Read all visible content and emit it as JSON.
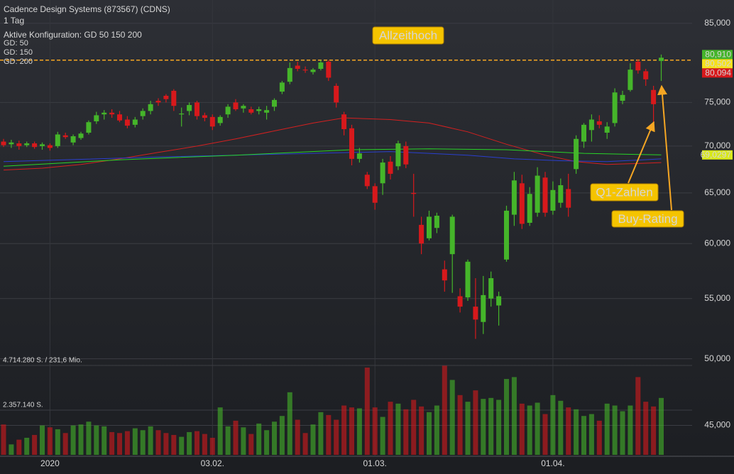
{
  "chart_data": {
    "type": "candlestick",
    "title": "Cadence Design Systems (873567) (CDNS)",
    "subtitle": "1 Tag",
    "config": "Aktive Konfiguration: GD 50 150 200",
    "categories": [
      null,
      null,
      null,
      null,
      null,
      null,
      "2020",
      null,
      null,
      null,
      null,
      null,
      null,
      null,
      null,
      null,
      null,
      null,
      null,
      null,
      null,
      null,
      null,
      null,
      null,
      null,
      null,
      "03.02.",
      null,
      null,
      null,
      null,
      null,
      null,
      null,
      null,
      null,
      null,
      null,
      null,
      null,
      null,
      null,
      null,
      null,
      null,
      null,
      null,
      "01.03.",
      null,
      null,
      null,
      null,
      null,
      null,
      null,
      null,
      null,
      null,
      null,
      null,
      null,
      null,
      null,
      null,
      null,
      null,
      null,
      null,
      null,
      null,
      "01.04.",
      null,
      null,
      null,
      null,
      null,
      null,
      null,
      null,
      null,
      null,
      null,
      null,
      null,
      null
    ],
    "open": [
      70.5,
      70.2,
      70.3,
      70.1,
      70.3,
      70.0,
      70.1,
      70.0,
      71.2,
      70.4,
      70.9,
      71.5,
      72.8,
      73.6,
      73.8,
      73.6,
      73.0,
      72.4,
      73.4,
      74.0,
      75.2,
      75.8,
      76.4,
      73.6,
      74.0,
      75.0,
      73.5,
      73.3,
      72.6,
      73.6,
      75.0,
      74.3,
      74.2,
      74.0,
      73.8,
      74.5,
      76.3,
      77.5,
      79.5,
      79.0,
      78.7,
      79.1,
      80.0,
      77.0,
      73.6,
      72.0,
      68.6,
      66.9,
      65.7,
      66.0,
      68.3,
      67.8,
      70.0,
      65.0,
      61.8,
      60.5,
      61.5,
      57.6,
      59.0,
      55.2,
      55.1,
      54.3,
      53.0,
      55.0,
      54.4,
      58.5,
      62.8,
      66.0,
      62.0,
      63.0,
      66.6,
      63.2,
      64.0,
      65.4,
      67.5,
      70.5,
      71.8,
      72.8,
      71.5,
      72.6,
      75.2,
      76.5,
      80.0,
      78.8,
      76.5,
      80.094
    ],
    "high": [
      70.8,
      70.7,
      70.6,
      70.5,
      70.5,
      70.4,
      70.3,
      71.6,
      71.5,
      71.3,
      71.6,
      72.9,
      73.9,
      74.1,
      74.2,
      74.0,
      73.4,
      73.3,
      74.3,
      75.2,
      75.5,
      76.0,
      76.6,
      74.4,
      75.0,
      75.2,
      73.8,
      73.6,
      73.5,
      74.8,
      75.4,
      74.8,
      74.5,
      74.5,
      74.6,
      75.5,
      77.6,
      79.9,
      80.0,
      79.4,
      79.2,
      80.2,
      80.2,
      77.3,
      73.9,
      72.4,
      69.8,
      67.2,
      66.0,
      68.6,
      68.9,
      70.6,
      70.5,
      67.0,
      62.6,
      63.2,
      63.0,
      58.4,
      62.8,
      55.9,
      58.5,
      56.8,
      57.0,
      57.4,
      55.6,
      63.7,
      67.2,
      66.9,
      65.6,
      67.7,
      67.2,
      66.2,
      66.5,
      67.0,
      71.2,
      72.6,
      73.6,
      73.5,
      72.7,
      76.7,
      76.4,
      79.8,
      80.3,
      79.1,
      77.0,
      80.91
    ],
    "low": [
      69.9,
      69.8,
      69.6,
      69.9,
      69.7,
      69.6,
      69.5,
      69.8,
      70.8,
      70.1,
      70.7,
      71.3,
      72.5,
      73.0,
      73.2,
      72.7,
      72.0,
      72.1,
      73.0,
      73.6,
      74.6,
      75.0,
      74.0,
      72.2,
      73.5,
      73.0,
      72.8,
      71.8,
      72.3,
      73.2,
      74.0,
      73.8,
      73.6,
      73.6,
      73.0,
      74.0,
      76.0,
      77.2,
      78.8,
      78.6,
      78.4,
      78.9,
      77.6,
      74.4,
      71.2,
      67.9,
      68.2,
      65.4,
      63.3,
      64.8,
      66.4,
      67.4,
      67.6,
      62.6,
      59.0,
      60.3,
      61.0,
      55.6,
      55.5,
      53.8,
      54.8,
      51.6,
      52.0,
      54.3,
      52.7,
      58.3,
      61.7,
      61.4,
      61.7,
      62.6,
      62.6,
      62.8,
      63.5,
      62.6,
      67.0,
      69.8,
      70.5,
      72.0,
      70.8,
      72.2,
      74.8,
      76.3,
      78.5,
      77.0,
      72.6,
      77.6
    ],
    "close": [
      70.1,
      70.4,
      70.0,
      70.3,
      69.9,
      70.2,
      69.8,
      71.3,
      71.0,
      71.1,
      71.4,
      72.7,
      73.5,
      73.8,
      73.6,
      72.9,
      72.3,
      73.0,
      74.0,
      74.8,
      75.0,
      75.4,
      74.6,
      73.7,
      74.7,
      73.4,
      73.2,
      72.2,
      73.3,
      74.5,
      74.2,
      74.6,
      73.8,
      74.2,
      74.1,
      75.3,
      77.4,
      79.2,
      79.1,
      78.9,
      79.0,
      79.9,
      78.0,
      75.0,
      71.9,
      68.6,
      69.2,
      65.7,
      64.0,
      68.2,
      67.0,
      70.3,
      68.0,
      64.9,
      60.0,
      62.6,
      62.7,
      56.6,
      62.6,
      54.3,
      58.3,
      53.2,
      55.3,
      56.8,
      55.2,
      63.2,
      66.3,
      61.9,
      64.9,
      66.8,
      63.0,
      65.3,
      65.8,
      63.5,
      70.8,
      72.4,
      73.0,
      72.4,
      72.2,
      76.2,
      75.9,
      79.0,
      78.9,
      77.8,
      74.8,
      80.502
    ],
    "up_color": "#45b52a",
    "down_color": "#d7191c",
    "ylim": [
      43.0,
      88.2
    ],
    "log_scale": true,
    "grid": true,
    "yticks": [
      {
        "value": 85,
        "label": "85,000"
      },
      {
        "value": 75,
        "label": "75,000"
      },
      {
        "value": 70,
        "label": "70,000"
      },
      {
        "value": 65,
        "label": "65,000"
      },
      {
        "value": 60,
        "label": "60,000"
      },
      {
        "value": 55,
        "label": "55,000"
      },
      {
        "value": 50,
        "label": "50,000"
      },
      {
        "value": 45,
        "label": "45,000"
      }
    ],
    "series": [
      {
        "name": "GD: 50",
        "color": "#d42020",
        "x": [
          0,
          5,
          10,
          15,
          20,
          25,
          30,
          35,
          40,
          44,
          50,
          55,
          60,
          65,
          70,
          74,
          78,
          82,
          85
        ],
        "values": [
          67.4,
          67.6,
          68.0,
          68.6,
          69.3,
          70.0,
          70.8,
          71.7,
          72.6,
          73.2,
          73.0,
          72.6,
          71.6,
          70.2,
          69.0,
          68.3,
          68.0,
          68.1,
          68.2
        ]
      },
      {
        "name": "GD: 150",
        "color": "#2a3fd0",
        "x": [
          0,
          20,
          40,
          50,
          60,
          66,
          72,
          78,
          85
        ],
        "values": [
          68.3,
          68.8,
          69.2,
          69.4,
          69.0,
          68.6,
          68.4,
          68.3,
          68.6
        ]
      },
      {
        "name": "GD: 200",
        "color": "#28d428",
        "x": [
          0,
          15,
          30,
          45,
          55,
          65,
          75,
          85
        ],
        "values": [
          67.8,
          68.5,
          69.0,
          69.6,
          69.7,
          69.6,
          69.2,
          69.0297
        ]
      }
    ],
    "volume": {
      "values": [
        1600000,
        550000,
        800000,
        900000,
        1050000,
        1550000,
        1450000,
        1350000,
        1150000,
        1550000,
        1600000,
        1750000,
        1550000,
        1500000,
        1200000,
        1150000,
        1250000,
        1400000,
        1300000,
        1500000,
        1300000,
        1150000,
        1050000,
        950000,
        1200000,
        1250000,
        1100000,
        900000,
        2500000,
        1500000,
        1800000,
        1450000,
        1100000,
        1650000,
        1300000,
        1750000,
        2050000,
        3300000,
        1850000,
        1150000,
        1600000,
        2250000,
        2100000,
        1850000,
        2600000,
        2500000,
        2450000,
        4600000,
        2500000,
        2000000,
        2800000,
        2700000,
        2400000,
        2900000,
        2550000,
        2250000,
        2600000,
        4700000,
        3950000,
        3150000,
        2800000,
        3400000,
        2950000,
        3000000,
        2900000,
        4000000,
        4100000,
        2700000,
        2600000,
        2750000,
        2150000,
        3150000,
        2850000,
        2500000,
        2400000,
        2050000,
        2150000,
        1800000,
        2700000,
        2600000,
        2300000,
        2600000,
        4100000,
        2800000,
        2550000,
        3000000
      ],
      "ylim": [
        0,
        4714280
      ],
      "yticks": [
        {
          "value": 4714280,
          "label": "4.714.280 S. / 231,6 Mio."
        },
        {
          "value": 2357140,
          "label": "2.357.140 S."
        }
      ]
    },
    "price_labels": [
      {
        "value": 80.91,
        "label": "80,910",
        "color": "#45b52a",
        "text_color": "#000000"
      },
      {
        "value": 80.502,
        "label": "80,502",
        "color": "#f5e11a",
        "text_color": "#000000"
      },
      {
        "value": 80.094,
        "label": "80,094",
        "color": "#d7191c",
        "text_color": "#ffffff"
      },
      {
        "value": 69.0297,
        "label": "69,0297",
        "color": "#d8e81a",
        "text_color": "#000000"
      }
    ],
    "reference_line": {
      "value": 80.2,
      "label": "Allzeithoch",
      "color": "#f5a623"
    },
    "annotations": [
      {
        "text": "Q1-Zahlen",
        "color": "#f5c400"
      },
      {
        "text": "Buy-Rating",
        "color": "#f5c400"
      }
    ]
  }
}
